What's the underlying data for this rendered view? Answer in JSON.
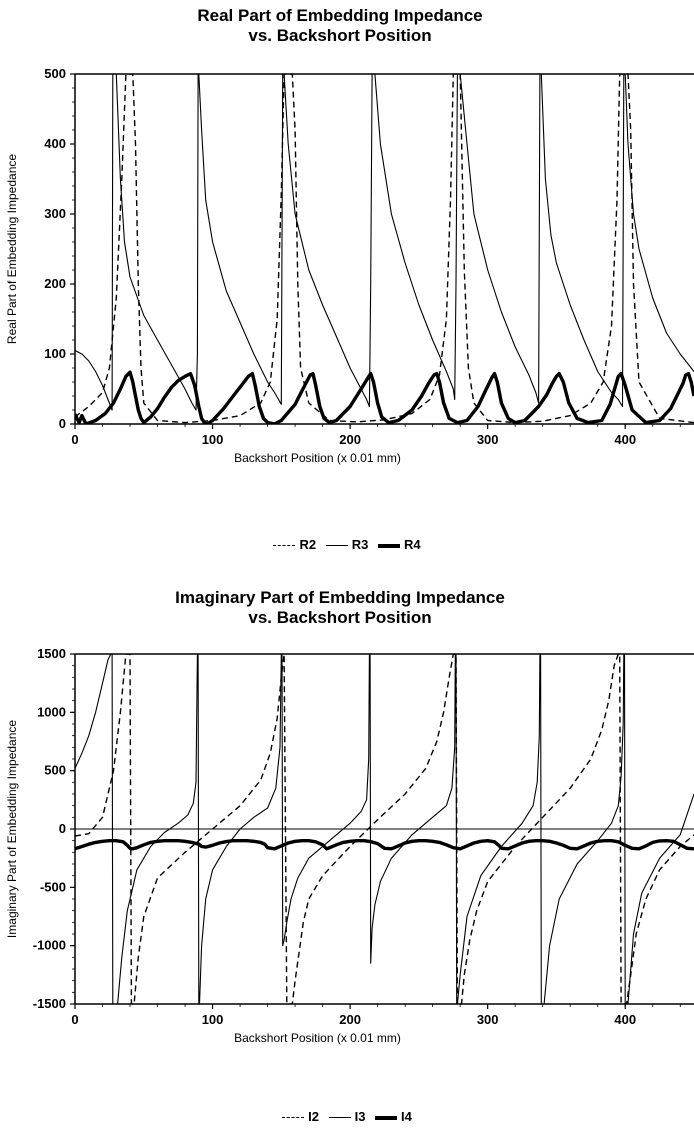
{
  "chart_data": [
    {
      "type": "line",
      "title_line1": "Real Part of Embedding Impedance",
      "title_line2": "vs. Backshort Position",
      "xlabel": "Backshort Position (x 0.01 mm)",
      "ylabel": "Real Part of Embedding Impedance",
      "xlim": [
        0,
        450
      ],
      "ylim": [
        0,
        500
      ],
      "xticks": [
        0,
        100,
        200,
        300,
        400
      ],
      "yticks": [
        0,
        100,
        200,
        300,
        400,
        500
      ],
      "grid": false,
      "legend_position": "bottom-center",
      "series": [
        {
          "name": "R2",
          "style": "dashed",
          "x": [
            0,
            10,
            20,
            25,
            30,
            34,
            37,
            39,
            40,
            42,
            44,
            46,
            48,
            50,
            60,
            80,
            100,
            120,
            135,
            142,
            147,
            150,
            152,
            154,
            156,
            158,
            160,
            162,
            164,
            170,
            185,
            205,
            225,
            245,
            258,
            265,
            270,
            273,
            275,
            277,
            279,
            280,
            283,
            286,
            290,
            300,
            320,
            340,
            360,
            375,
            384,
            390,
            394,
            396,
            398,
            400,
            402,
            404,
            406,
            410,
            425,
            450
          ],
          "y": [
            10,
            25,
            45,
            80,
            180,
            350,
            500,
            500,
            500,
            500,
            400,
            200,
            80,
            30,
            5,
            2,
            5,
            12,
            30,
            60,
            150,
            330,
            500,
            500,
            500,
            500,
            420,
            200,
            80,
            30,
            5,
            3,
            6,
            15,
            35,
            70,
            150,
            320,
            500,
            500,
            500,
            500,
            220,
            80,
            30,
            5,
            2,
            4,
            12,
            30,
            60,
            140,
            320,
            500,
            500,
            500,
            500,
            420,
            200,
            60,
            8,
            2
          ]
        },
        {
          "name": "R3",
          "style": "thin",
          "x": [
            0,
            5,
            10,
            15,
            20,
            24,
            27,
            27.5,
            28,
            30,
            33,
            36,
            40,
            50,
            60,
            70,
            80,
            85,
            88,
            89,
            89.5,
            90,
            92,
            95,
            100,
            110,
            120,
            130,
            140,
            145,
            148,
            150,
            151,
            152,
            155,
            160,
            170,
            180,
            190,
            200,
            208,
            212,
            214,
            215,
            216,
            218,
            222,
            230,
            240,
            250,
            260,
            270,
            275,
            276,
            277,
            278,
            280,
            285,
            290,
            300,
            310,
            320,
            330,
            335,
            337,
            338,
            339,
            342,
            346,
            350,
            360,
            370,
            380,
            390,
            395,
            398,
            399,
            400,
            402,
            406,
            410,
            420,
            430,
            440,
            450
          ],
          "y": [
            105,
            100,
            90,
            75,
            55,
            35,
            20,
            500,
            500,
            500,
            350,
            260,
            210,
            155,
            120,
            85,
            50,
            30,
            20,
            100,
            500,
            500,
            420,
            320,
            260,
            190,
            145,
            100,
            60,
            45,
            35,
            28,
            500,
            500,
            400,
            300,
            220,
            170,
            125,
            80,
            50,
            35,
            25,
            200,
            500,
            500,
            400,
            300,
            230,
            170,
            120,
            75,
            50,
            35,
            200,
            500,
            500,
            400,
            300,
            220,
            160,
            110,
            70,
            45,
            30,
            500,
            500,
            350,
            270,
            230,
            170,
            120,
            75,
            45,
            35,
            25,
            500,
            500,
            400,
            300,
            250,
            180,
            130,
            100,
            75
          ]
        },
        {
          "name": "R4",
          "style": "thick",
          "x": [
            0,
            3,
            5,
            8,
            15,
            22,
            28,
            33,
            37,
            40,
            42,
            44,
            46,
            48,
            50,
            55,
            60,
            65,
            70,
            75,
            80,
            84,
            87,
            90,
            92,
            94,
            96,
            100,
            108,
            115,
            121,
            126,
            129,
            131,
            134,
            137,
            140,
            145,
            150,
            160,
            167,
            171,
            173,
            175,
            178,
            181,
            185,
            190,
            200,
            208,
            213,
            215,
            217,
            220,
            223,
            228,
            235,
            245,
            252,
            257,
            261,
            263,
            265,
            268,
            272,
            278,
            285,
            293,
            299,
            303,
            305,
            307,
            310,
            315,
            320,
            327,
            337,
            343,
            347,
            350,
            352,
            355,
            359,
            365,
            373,
            383,
            389,
            393,
            395,
            397,
            400,
            405,
            415,
            425,
            433,
            438,
            442,
            444,
            446,
            448,
            450
          ],
          "y": [
            14,
            2,
            12,
            0,
            5,
            15,
            30,
            50,
            68,
            74,
            60,
            40,
            20,
            8,
            2,
            10,
            22,
            38,
            52,
            62,
            68,
            72,
            55,
            25,
            8,
            2,
            0,
            5,
            22,
            40,
            55,
            68,
            72,
            55,
            25,
            8,
            2,
            0,
            5,
            28,
            55,
            70,
            72,
            55,
            25,
            8,
            2,
            5,
            25,
            50,
            66,
            72,
            60,
            30,
            10,
            2,
            5,
            20,
            40,
            58,
            70,
            72,
            60,
            30,
            8,
            2,
            5,
            25,
            50,
            66,
            72,
            60,
            30,
            8,
            2,
            5,
            25,
            42,
            58,
            68,
            72,
            60,
            30,
            8,
            2,
            5,
            28,
            55,
            68,
            72,
            55,
            20,
            2,
            5,
            22,
            42,
            58,
            70,
            72,
            60,
            40
          ]
        }
      ]
    },
    {
      "type": "line",
      "title_line1": "Imaginary Part of Embedding Impedance",
      "title_line2": "vs. Backshort Position",
      "xlabel": "Backshort Position (x 0.01 mm)",
      "ylabel": "Imaginary Part of Embedding Impedance",
      "xlim": [
        0,
        450
      ],
      "ylim": [
        -1500,
        1500
      ],
      "xticks": [
        0,
        100,
        200,
        300,
        400
      ],
      "yticks": [
        -1500,
        -1000,
        -500,
        0,
        500,
        1000,
        1500
      ],
      "grid": false,
      "zero_line": true,
      "legend_position": "bottom-center",
      "series": [
        {
          "name": "I2",
          "style": "dashed",
          "x": [
            0,
            10,
            20,
            28,
            33,
            37,
            39,
            40,
            41,
            43,
            46,
            50,
            60,
            80,
            100,
            120,
            135,
            142,
            147,
            150,
            152,
            154,
            155,
            156,
            158,
            160,
            163,
            166,
            170,
            180,
            200,
            220,
            240,
            255,
            263,
            268,
            272,
            275,
            277,
            278,
            279,
            280,
            281,
            283,
            287,
            292,
            300,
            320,
            340,
            360,
            375,
            383,
            388,
            392,
            395,
            396,
            397,
            399,
            401,
            404,
            408,
            415,
            425,
            440,
            450
          ],
          "y": [
            -60,
            -40,
            100,
            500,
            1000,
            1500,
            1500,
            1500,
            -1500,
            -1500,
            -1100,
            -750,
            -420,
            -200,
            0,
            200,
            420,
            650,
            950,
            1300,
            1500,
            -1500,
            -1500,
            -1500,
            -1500,
            -1300,
            -1050,
            -800,
            -600,
            -400,
            -150,
            80,
            300,
            520,
            750,
            1000,
            1300,
            1500,
            1500,
            -1500,
            -1500,
            -1500,
            -1500,
            -1250,
            -950,
            -700,
            -450,
            -150,
            100,
            350,
            600,
            850,
            1100,
            1400,
            1500,
            1500,
            -1500,
            -1500,
            -1500,
            -1250,
            -900,
            -600,
            -350,
            -150,
            -50
          ]
        },
        {
          "name": "I3",
          "style": "thin",
          "x": [
            0,
            5,
            10,
            15,
            20,
            24,
            26,
            27,
            27.5,
            28,
            29,
            31,
            34,
            38,
            45,
            55,
            65,
            75,
            82,
            86,
            88,
            89,
            89.5,
            90,
            90.5,
            92,
            95,
            100,
            110,
            120,
            130,
            140,
            146,
            149,
            150,
            150.5,
            151,
            152,
            154,
            157,
            162,
            170,
            185,
            200,
            208,
            212,
            213.5,
            214,
            214.5,
            215,
            216,
            218,
            222,
            230,
            245,
            260,
            270,
            274,
            276,
            276.5,
            277,
            277.5,
            278,
            280,
            285,
            295,
            310,
            325,
            333,
            336,
            337.5,
            338,
            338.5,
            339,
            341,
            345,
            352,
            365,
            380,
            390,
            395,
            397,
            398.5,
            399,
            399.5,
            400,
            402,
            406,
            412,
            425,
            440,
            450
          ],
          "y": [
            520,
            650,
            800,
            1000,
            1250,
            1450,
            1500,
            1500,
            -1500,
            -1500,
            -1500,
            -1500,
            -1100,
            -700,
            -350,
            -150,
            -30,
            50,
            120,
            220,
            400,
            1500,
            1500,
            -1500,
            -1500,
            -1000,
            -600,
            -350,
            -150,
            0,
            100,
            180,
            350,
            700,
            1500,
            1500,
            -1000,
            -950,
            -800,
            -600,
            -420,
            -250,
            -100,
            50,
            150,
            250,
            600,
            1500,
            1500,
            -1150,
            -850,
            -650,
            -450,
            -250,
            -50,
            100,
            200,
            350,
            700,
            1500,
            1500,
            -1500,
            -1500,
            -1250,
            -750,
            -400,
            -150,
            50,
            200,
            400,
            800,
            1500,
            1500,
            -1500,
            -1500,
            -1000,
            -600,
            -300,
            -100,
            50,
            200,
            450,
            900,
            1500,
            1500,
            -1500,
            -1500,
            -900,
            -550,
            -250,
            -50,
            300
          ]
        },
        {
          "name": "I4",
          "style": "thick",
          "x": [
            0,
            5,
            10,
            15,
            20,
            25,
            30,
            35,
            38,
            40,
            42,
            45,
            50,
            55,
            60,
            65,
            70,
            75,
            80,
            85,
            90,
            92,
            95,
            100,
            105,
            110,
            115,
            120,
            125,
            130,
            135,
            138,
            140,
            145,
            150,
            155,
            160,
            165,
            170,
            175,
            180,
            183,
            185,
            190,
            195,
            200,
            205,
            210,
            215,
            220,
            225,
            230,
            235,
            240,
            245,
            250,
            255,
            260,
            265,
            270,
            275,
            280,
            285,
            290,
            295,
            300,
            305,
            308,
            310,
            315,
            320,
            325,
            330,
            335,
            340,
            345,
            350,
            355,
            360,
            365,
            370,
            375,
            380,
            385,
            390,
            395,
            400,
            405,
            410,
            415,
            420,
            425,
            430,
            435,
            440,
            445,
            450
          ],
          "y": [
            -170,
            -150,
            -130,
            -115,
            -105,
            -100,
            -100,
            -110,
            -140,
            -165,
            -170,
            -160,
            -135,
            -115,
            -105,
            -100,
            -100,
            -100,
            -105,
            -115,
            -130,
            -150,
            -155,
            -140,
            -120,
            -108,
            -100,
            -100,
            -100,
            -105,
            -115,
            -130,
            -160,
            -170,
            -145,
            -120,
            -105,
            -100,
            -100,
            -110,
            -135,
            -170,
            -160,
            -135,
            -115,
            -105,
            -100,
            -100,
            -108,
            -125,
            -165,
            -170,
            -145,
            -120,
            -105,
            -100,
            -100,
            -105,
            -115,
            -135,
            -160,
            -170,
            -145,
            -120,
            -105,
            -100,
            -110,
            -140,
            -165,
            -170,
            -145,
            -120,
            -105,
            -100,
            -100,
            -105,
            -120,
            -140,
            -165,
            -170,
            -145,
            -120,
            -105,
            -100,
            -100,
            -110,
            -140,
            -165,
            -170,
            -145,
            -115,
            -102,
            -100,
            -105,
            -135,
            -165,
            -170
          ]
        }
      ]
    }
  ],
  "legend1": {
    "labels": [
      "R2",
      "R3",
      "R4"
    ]
  },
  "legend2": {
    "labels": [
      "I2",
      "I3",
      "I4"
    ]
  }
}
